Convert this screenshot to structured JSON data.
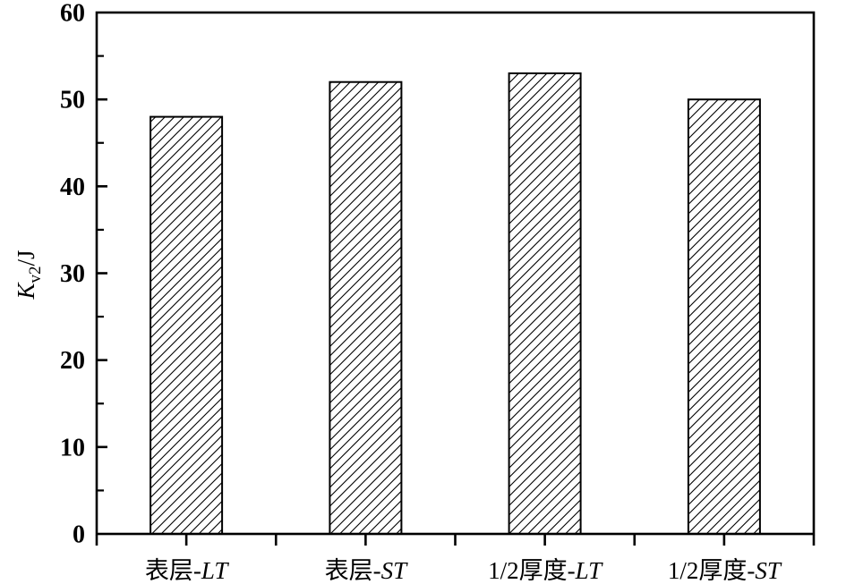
{
  "chart_data": {
    "type": "bar",
    "title": "",
    "xlabel": "",
    "ylabel": {
      "variable": "K",
      "subscript": "v2",
      "suffix": "/J"
    },
    "categories": [
      "表层-LT",
      "表层-ST",
      "1/2厚度-LT",
      "1/2厚度-ST"
    ],
    "values": [
      48,
      52,
      53,
      50
    ],
    "ylim": [
      0,
      60
    ],
    "ytick_step": 10,
    "ytick_labels": [
      "0",
      "10",
      "20",
      "30",
      "40",
      "50",
      "60"
    ],
    "minor_tick_step": 5,
    "grid": "off",
    "legend": "none",
    "background_color": "#ffffff",
    "axis_color": "#000000",
    "bar_style": {
      "fill_color": "#ffffff",
      "stroke_color": "#000000",
      "hatch": "forward-diagonal-lines"
    }
  }
}
